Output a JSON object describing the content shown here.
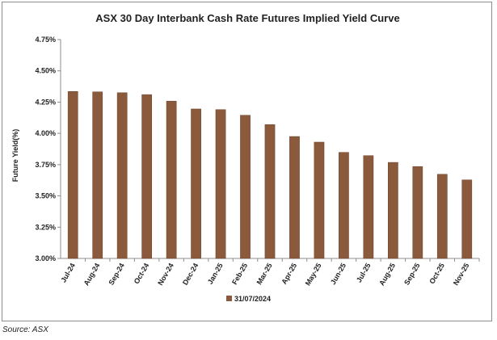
{
  "chart_data": {
    "type": "bar",
    "title": "ASX 30 Day Interbank Cash Rate Futures Implied Yield Curve",
    "xlabel": "",
    "ylabel": "Future Yield(%)",
    "ylim": [
      3.0,
      4.75
    ],
    "yticks": [
      "3.00%",
      "3.25%",
      "3.50%",
      "3.75%",
      "4.00%",
      "4.25%",
      "4.50%",
      "4.75%"
    ],
    "ytick_values": [
      3.0,
      3.25,
      3.5,
      3.75,
      4.0,
      4.25,
      4.5,
      4.75
    ],
    "grid": false,
    "legend_position": "bottom",
    "categories": [
      "Jul-24",
      "Aug-24",
      "Sep-24",
      "Oct-24",
      "Nov-24",
      "Dec-24",
      "Jan-25",
      "Feb-25",
      "Mar-25",
      "Apr-25",
      "May-25",
      "Jun-25",
      "Jul-25",
      "Aug-25",
      "Sep-25",
      "Oct-25",
      "Nov-25"
    ],
    "series": [
      {
        "name": "31/07/2024",
        "color": "#8b5a3c",
        "values": [
          4.335,
          4.332,
          4.325,
          4.31,
          4.258,
          4.195,
          4.19,
          4.145,
          4.07,
          3.975,
          3.93,
          3.848,
          3.822,
          3.768,
          3.735,
          3.673,
          3.628
        ]
      }
    ]
  },
  "footer": {
    "source": "Source: ASX"
  }
}
